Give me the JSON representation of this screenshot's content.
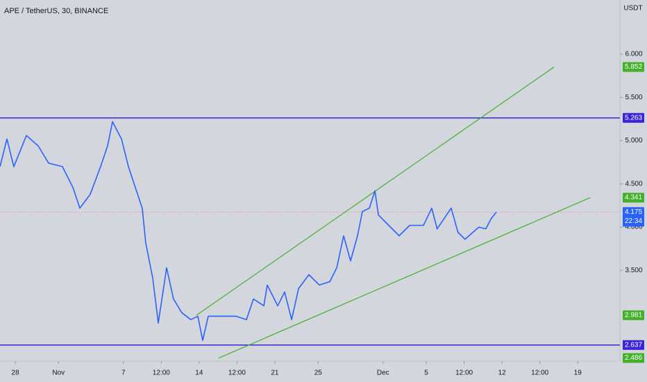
{
  "chart_data": {
    "type": "line",
    "title": "APE / TetherUS, 30, BINANCE",
    "currency": "USDT",
    "x": [
      -1.41,
      -0.77,
      -0.13,
      1.03,
      2.12,
      3.08,
      4.36,
      5.33,
      5.97,
      6.93,
      7.89,
      8.54,
      8.99,
      9.82,
      10.46,
      11.1,
      11.74,
      12.06,
      12.71,
      13.22,
      13.99,
      14.63,
      15.4,
      16.24,
      16.88,
      17.33,
      17.84,
      19.13,
      20.41,
      21.37,
      22.02,
      22.98,
      23.3,
      24.26,
      24.9,
      25.55,
      26.19,
      27.15,
      28.11,
      29.08,
      29.72,
      30.36,
      31.0,
      31.64,
      32.09,
      32.73,
      33.25,
      33.57,
      34.53,
      35.49,
      36.46,
      37.74,
      38.5,
      39.0,
      40.3,
      40.93,
      41.58,
      42.86,
      43.5,
      44.0,
      44.48
    ],
    "series": [
      {
        "color": "#2962ff",
        "values": [
          4.7,
          5.02,
          4.7,
          5.06,
          4.94,
          4.74,
          4.7,
          4.46,
          4.22,
          4.38,
          4.7,
          4.94,
          5.22,
          5.02,
          4.7,
          4.46,
          4.22,
          3.82,
          3.41,
          2.89,
          3.53,
          3.17,
          3.01,
          2.93,
          2.97,
          2.69,
          2.97,
          2.97,
          2.97,
          2.93,
          3.17,
          3.09,
          3.33,
          3.09,
          3.25,
          2.93,
          3.29,
          3.45,
          3.33,
          3.37,
          3.53,
          3.9,
          3.61,
          3.9,
          4.18,
          4.22,
          4.42,
          4.14,
          4.02,
          3.9,
          4.02,
          4.02,
          4.22,
          3.98,
          4.22,
          3.94,
          3.86,
          4.0,
          3.98,
          4.1,
          4.175
        ]
      }
    ],
    "xlim": [
      -1.41,
      55.9
    ],
    "xticks": [
      {
        "value": 0,
        "label": "28"
      },
      {
        "value": 4,
        "label": "Nov"
      },
      {
        "value": 10,
        "label": "7"
      },
      {
        "value": 13.5,
        "label": "12:00"
      },
      {
        "value": 17,
        "label": "14"
      },
      {
        "value": 20.5,
        "label": "12:00"
      },
      {
        "value": 24,
        "label": "21"
      },
      {
        "value": 28,
        "label": "25"
      },
      {
        "value": 34,
        "label": "Dec"
      },
      {
        "value": 38,
        "label": "5"
      },
      {
        "value": 41.5,
        "label": "12:00"
      },
      {
        "value": 45,
        "label": "12"
      },
      {
        "value": 48.5,
        "label": "12:00"
      },
      {
        "value": 52,
        "label": "19"
      }
    ],
    "ylim": [
      2.45,
      6.627
    ],
    "yticks": [
      {
        "value": 3.5,
        "label": "3.500"
      },
      {
        "value": 4,
        "label": "4.000"
      },
      {
        "value": 4.5,
        "label": "4.500"
      },
      {
        "value": 5,
        "label": "5.000"
      },
      {
        "value": 5.5,
        "label": "5.500"
      },
      {
        "value": 6,
        "label": "6.000"
      }
    ],
    "hlines": [
      {
        "value": 5.263,
        "color": "#3d22d8"
      },
      {
        "value": 2.637,
        "color": "#3d22d8"
      }
    ],
    "trendlines": [
      {
        "x": [
          16.75,
          49.81
        ],
        "values": [
          2.981,
          5.852
        ],
        "color": "#43b02a"
      },
      {
        "x": [
          18.81,
          53.15
        ],
        "values": [
          2.486,
          4.341
        ],
        "color": "#43b02a"
      }
    ],
    "last_price": {
      "value": 4.175,
      "countdown": "22:34",
      "color": "#2962ff"
    }
  }
}
